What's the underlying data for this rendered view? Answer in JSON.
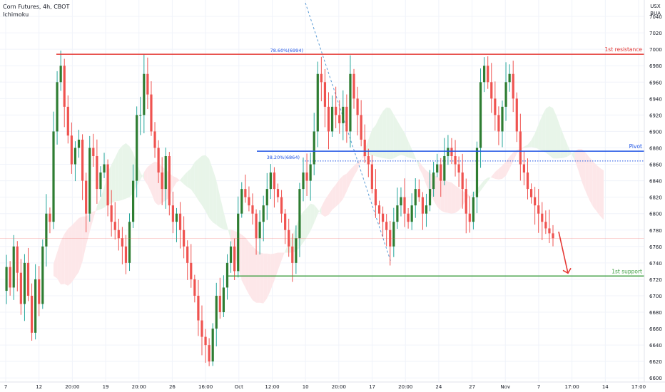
{
  "header": {
    "title": "Corn Futures, 4h, CBOT",
    "indicator": "Ichimoku"
  },
  "axis_currency": [
    "USX",
    "BUA"
  ],
  "colors": {
    "up": "#26a69a",
    "up_body": "#2e7d32",
    "down": "#ef5350",
    "resistance": "#e53935",
    "pivot": "#1e53e5",
    "support": "#43a047",
    "cloud_green": "#e8f5e9",
    "cloud_red": "#fde7e9",
    "grid": "#f0f3fa"
  },
  "chart_data": {
    "type": "candlestick",
    "title": "Corn Futures, 4h, CBOT",
    "ylim": [
      6595,
      7060
    ],
    "y_ticks": [
      6600,
      6620,
      6640,
      6660,
      6680,
      6700,
      6720,
      6740,
      6760,
      6780,
      6800,
      6820,
      6840,
      6860,
      6880,
      6900,
      6920,
      6940,
      6960,
      6980,
      7000,
      7020,
      7040
    ],
    "x_ticks": [
      "7",
      "12",
      "20:00",
      "19",
      "20:00",
      "26",
      "16:00",
      "Oct",
      "12:00",
      "10",
      "20:00",
      "17",
      "20:00",
      "24",
      "27",
      "Nov",
      "7",
      "17:00",
      "14",
      "17:00"
    ],
    "levels": [
      {
        "label": "1st resistance",
        "value": 6994,
        "value_label": "6994"
      },
      {
        "label": "Pivot",
        "value": 6876,
        "value_label": "6876"
      },
      {
        "label": "1st support",
        "value": 6724,
        "value_label": "6724"
      }
    ],
    "fib_annotations": [
      {
        "label": "78.60%(6994)",
        "value": 6994
      },
      {
        "label": "38.20%(6864)",
        "value": 6864
      }
    ],
    "current_price": 6770,
    "projection": {
      "from": 6778,
      "to": 6724
    },
    "price_path": [
      6706,
      6735,
      6710,
      6760,
      6728,
      6690,
      6740,
      6700,
      6655,
      6720,
      6690,
      6760,
      6800,
      6790,
      6900,
      6960,
      6980,
      6930,
      6895,
      6860,
      6880,
      6890,
      6840,
      6800,
      6880,
      6870,
      6830,
      6850,
      6860,
      6810,
      6790,
      6780,
      6770,
      6760,
      6740,
      6790,
      6840,
      6920,
      6920,
      6970,
      6945,
      6900,
      6880,
      6850,
      6830,
      6870,
      6810,
      6790,
      6800,
      6780,
      6760,
      6740,
      6720,
      6700,
      6670,
      6650,
      6640,
      6620,
      6660,
      6700,
      6680,
      6710,
      6740,
      6760,
      6730,
      6800,
      6830,
      6820,
      6810,
      6800,
      6770,
      6790,
      6810,
      6830,
      6850,
      6830,
      6820,
      6800,
      6780,
      6760,
      6740,
      6770,
      6830,
      6850,
      6840,
      6860,
      6900,
      6970,
      6960,
      6930,
      6900,
      6930,
      6920,
      6910,
      6930,
      6900,
      6970,
      6940,
      6920,
      6890,
      6870,
      6860,
      6830,
      6810,
      6800,
      6790,
      6780,
      6760,
      6790,
      6810,
      6820,
      6800,
      6790,
      6810,
      6830,
      6820,
      6800,
      6810,
      6830,
      6850,
      6860,
      6840,
      6870,
      6880,
      6870,
      6860,
      6850,
      6830,
      6800,
      6790,
      6820,
      6880,
      6960,
      6980,
      6960,
      6940,
      6920,
      6900,
      6930,
      6960,
      6970,
      6940,
      6900,
      6860,
      6850,
      6830,
      6820,
      6810,
      6800,
      6790,
      6782,
      6776,
      6770
    ]
  }
}
